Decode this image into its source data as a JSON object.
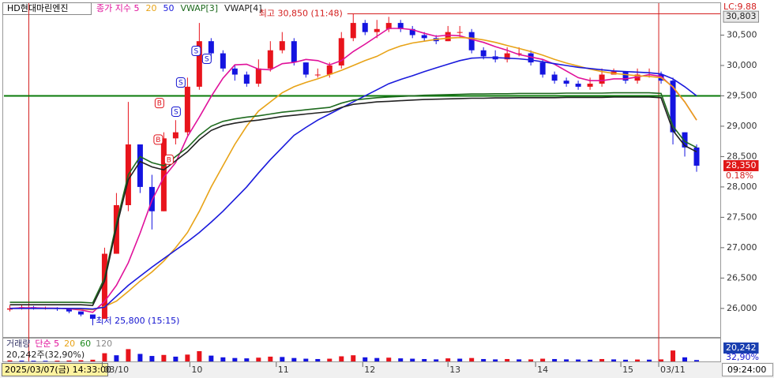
{
  "ui": {
    "symbol": "HD현대마린엔진",
    "cursor_time": "2025/03/07(금) 14:33:00",
    "current_time": "09:24:00"
  },
  "chart_data": [
    {
      "type": "candlestick",
      "series": [
        {
          "name": "종가 지수 5",
          "color": "#e0109a",
          "values": [
            26000,
            26010,
            26010,
            26005,
            26004,
            25994,
            25974,
            25936,
            26114,
            26380,
            26750,
            27240,
            27780,
            28160,
            28400,
            28830,
            29150,
            29490,
            29790,
            30010,
            30020,
            29940,
            29930,
            30030,
            30050,
            30100,
            30080,
            30010,
            30080,
            30230,
            30350,
            30480,
            30610,
            30610,
            30590,
            30530,
            30480,
            30500,
            30490,
            30430,
            30380,
            30310,
            30250,
            30180,
            30140,
            30100,
            30020,
            29910,
            29800,
            29750,
            29750,
            29780,
            29780,
            29810,
            29850,
            29820,
            29640,
            29400,
            29100
          ]
        },
        {
          "name": "20",
          "color": "#e8a317",
          "values": [
            26000,
            26000,
            26000,
            26000,
            26000,
            26000,
            25990,
            25980,
            26030,
            26120,
            26280,
            26450,
            26600,
            26780,
            27000,
            27250,
            27600,
            28000,
            28350,
            28700,
            29000,
            29250,
            29400,
            29550,
            29650,
            29720,
            29780,
            29850,
            29920,
            30000,
            30080,
            30150,
            30250,
            30320,
            30370,
            30400,
            30430,
            30450,
            30460,
            30450,
            30420,
            30380,
            30330,
            30280,
            30230,
            30170,
            30100,
            30040,
            29990,
            29940,
            29900,
            29870,
            29850,
            29830,
            29820,
            29800,
            29650,
            29400,
            29100
          ]
        },
        {
          "name": "50",
          "color": "#1a1adc",
          "values": [
            26000,
            26000,
            26000,
            26000,
            26000,
            26000,
            26000,
            25990,
            26020,
            26200,
            26380,
            26530,
            26680,
            26820,
            26960,
            27100,
            27250,
            27420,
            27600,
            27800,
            28000,
            28230,
            28450,
            28650,
            28850,
            28980,
            29100,
            29200,
            29300,
            29400,
            29500,
            29600,
            29700,
            29770,
            29830,
            29900,
            29960,
            30020,
            30080,
            30120,
            30130,
            30130,
            30120,
            30110,
            30090,
            30060,
            30030,
            30000,
            29970,
            29950,
            29930,
            29910,
            29900,
            29890,
            29880,
            29860,
            29780,
            29650,
            29500
          ]
        },
        {
          "name": "VWAP[3]",
          "color": "#1e6a1e",
          "values": [
            26100,
            26100,
            26100,
            26100,
            26100,
            26100,
            26100,
            26090,
            26500,
            27400,
            28200,
            28500,
            28400,
            28350,
            28500,
            28650,
            28850,
            29000,
            29080,
            29120,
            29150,
            29170,
            29200,
            29230,
            29250,
            29270,
            29290,
            29310,
            29380,
            29430,
            29450,
            29470,
            29480,
            29490,
            29500,
            29510,
            29515,
            29520,
            29525,
            29530,
            29530,
            29535,
            29535,
            29540,
            29540,
            29540,
            29540,
            29545,
            29545,
            29545,
            29545,
            29550,
            29550,
            29550,
            29550,
            29540,
            29000,
            28750,
            28650
          ]
        },
        {
          "name": "VWAP[4]",
          "color": "#222222",
          "values": [
            26060,
            26060,
            26060,
            26060,
            26060,
            26060,
            26060,
            26050,
            26450,
            27330,
            28120,
            28420,
            28330,
            28280,
            28430,
            28580,
            28780,
            28930,
            29010,
            29050,
            29080,
            29100,
            29130,
            29160,
            29180,
            29200,
            29220,
            29240,
            29310,
            29360,
            29380,
            29400,
            29410,
            29420,
            29430,
            29440,
            29445,
            29450,
            29455,
            29460,
            29460,
            29465,
            29465,
            29470,
            29470,
            29470,
            29470,
            29475,
            29475,
            29475,
            29475,
            29480,
            29480,
            29480,
            29480,
            29470,
            28930,
            28680,
            28580
          ]
        }
      ],
      "open": [
        25980,
        26000,
        26020,
        26000,
        26010,
        25990,
        25950,
        25900,
        25830,
        26900,
        27700,
        28700,
        28000,
        27600,
        28800,
        28900,
        29650,
        30400,
        30200,
        29950,
        29850,
        29700,
        29950,
        30250,
        30400,
        30050,
        29850,
        29850,
        30000,
        30450,
        30700,
        30550,
        30600,
        30700,
        30600,
        30500,
        30450,
        30400,
        30550,
        30550,
        30250,
        30150,
        30100,
        30200,
        30200,
        30050,
        29850,
        29750,
        29700,
        29650,
        29700,
        29850,
        29900,
        29750,
        29850,
        29850,
        29750,
        28900,
        28650
      ],
      "high": [
        26050,
        26050,
        26040,
        26030,
        26020,
        26000,
        25950,
        25900,
        27000,
        27900,
        29400,
        28700,
        28200,
        28900,
        29100,
        29800,
        30700,
        30450,
        30250,
        30000,
        29900,
        30100,
        30400,
        30550,
        30450,
        30050,
        29950,
        30050,
        30550,
        30850,
        30750,
        30750,
        30800,
        30750,
        30650,
        30550,
        30500,
        30650,
        30650,
        30600,
        30300,
        30250,
        30300,
        30300,
        30250,
        30100,
        29900,
        29800,
        29750,
        29800,
        29950,
        29950,
        29900,
        29950,
        29950,
        29900,
        29800,
        28900,
        28700
      ],
      "low": [
        25950,
        25980,
        25980,
        25980,
        25960,
        25920,
        25870,
        25800,
        25830,
        26900,
        27600,
        27900,
        27300,
        27600,
        28700,
        28850,
        29600,
        30100,
        29900,
        29750,
        29650,
        29650,
        29900,
        30200,
        30000,
        29800,
        29800,
        29800,
        29950,
        30400,
        30500,
        30450,
        30550,
        30550,
        30450,
        30400,
        30350,
        30400,
        30450,
        30200,
        30100,
        30050,
        30050,
        30150,
        30000,
        29800,
        29700,
        29650,
        29600,
        29600,
        29650,
        29850,
        29700,
        29700,
        29800,
        29700,
        28700,
        28500,
        28250
      ],
      "close": [
        26000,
        26020,
        26000,
        26010,
        25990,
        25950,
        25900,
        25830,
        26900,
        27700,
        28700,
        28000,
        27600,
        28800,
        28900,
        29650,
        30400,
        30200,
        29950,
        29850,
        29700,
        29950,
        30250,
        30400,
        30050,
        29850,
        29850,
        30000,
        30450,
        30700,
        30550,
        30600,
        30700,
        30600,
        30500,
        30450,
        30400,
        30550,
        30550,
        30250,
        30150,
        30100,
        30200,
        30200,
        30050,
        29850,
        29750,
        29700,
        29650,
        29700,
        29850,
        29900,
        29750,
        29850,
        29850,
        29750,
        28900,
        28650,
        28350
      ],
      "up_color": "#e8141c",
      "down_color": "#1414e0",
      "xlim": [
        -0.5,
        60
      ],
      "ylim": [
        25530,
        31000
      ],
      "yticks": [
        {
          "value": 26000,
          "label": "26,000"
        },
        {
          "value": 26500,
          "label": "26,500"
        },
        {
          "value": 27000,
          "label": "27,000"
        },
        {
          "value": 27500,
          "label": "27,500"
        },
        {
          "value": 28000,
          "label": "28,000"
        },
        {
          "value": 28500,
          "label": "28,500"
        },
        {
          "value": 29000,
          "label": "29,000"
        },
        {
          "value": 29500,
          "label": "29,500"
        },
        {
          "value": 30000,
          "label": "30,000"
        },
        {
          "value": 30500,
          "label": "30,500"
        }
      ],
      "xticks": [
        {
          "value": 7.8,
          "label": "03/10"
        },
        {
          "value": 15.2,
          "label": "10"
        },
        {
          "value": 22.5,
          "label": "11"
        },
        {
          "value": 29.8,
          "label": "12"
        },
        {
          "value": 37,
          "label": "13"
        },
        {
          "value": 44.4,
          "label": "14"
        },
        {
          "value": 51.6,
          "label": "15"
        },
        {
          "value": 54.8,
          "label": "03/11"
        }
      ],
      "day_lines": [
        1.6,
        54.8
      ],
      "reference_line": 29500,
      "high_value": 30850,
      "high_label": "최고 30,850 (11:48)",
      "high_x": 28.5,
      "low_value": 25800,
      "low_label": "최저 25,800 (15:15)",
      "low_x": 7,
      "lc_label": "LC:9.88",
      "top_price": {
        "value": 30803,
        "label": "30,803"
      },
      "last_price": {
        "value": 28350,
        "label": "28,350"
      },
      "change_label": "0.18%",
      "signals": [
        {
          "x": 12.6,
          "y": 29380,
          "label": "B"
        },
        {
          "x": 12.5,
          "y": 28780,
          "label": "B"
        },
        {
          "x": 13.4,
          "y": 28450,
          "label": "B"
        },
        {
          "x": 14.4,
          "y": 29720,
          "label": "S"
        },
        {
          "x": 14,
          "y": 29240,
          "label": "S"
        },
        {
          "x": 15.7,
          "y": 30240,
          "label": "S"
        },
        {
          "x": 16.6,
          "y": 30110,
          "label": "S"
        }
      ],
      "signal_colors": {
        "B": "#e0141c",
        "S": "#1414d0"
      }
    },
    {
      "type": "bar",
      "title": "거래량",
      "legend_labels": [
        "단순 5",
        "20",
        "60",
        "120"
      ],
      "legend_colors": [
        "#e0109a",
        "#e8a317",
        "#1e8a1e",
        "#888888"
      ],
      "summary": "20,242주(32,90%)",
      "values": [
        15000,
        12000,
        10000,
        9000,
        11000,
        14000,
        18000,
        25000,
        120000,
        90000,
        180000,
        110000,
        80000,
        95000,
        70000,
        100000,
        150000,
        85000,
        60000,
        50000,
        45000,
        55000,
        70000,
        65000,
        50000,
        40000,
        35000,
        40000,
        75000,
        90000,
        60000,
        50000,
        55000,
        45000,
        40000,
        35000,
        30000,
        45000,
        40000,
        50000,
        35000,
        30000,
        35000,
        30000,
        30000,
        40000,
        35000,
        30000,
        28000,
        25000,
        35000,
        30000,
        25000,
        28000,
        26000,
        30000,
        160000,
        60000,
        20242
      ],
      "last_label": "20,242",
      "ratio_label": "32,90%",
      "ylim": [
        0,
        300000
      ]
    }
  ]
}
